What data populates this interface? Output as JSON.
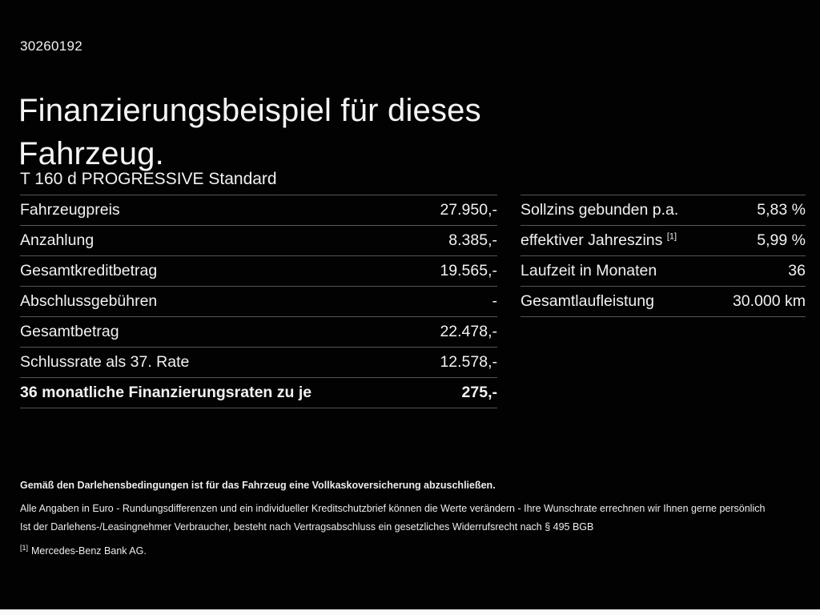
{
  "page": {
    "id_number": "30260192",
    "title_line1": "Finanzierungsbeispiel für dieses",
    "title_line2": "Fahrzeug.",
    "subtitle": "T 160 d PROGRESSIVE Standard"
  },
  "left_table": {
    "rows": [
      {
        "label": "Fahrzeugpreis",
        "value": "27.950,-"
      },
      {
        "label": "Anzahlung",
        "value": "8.385,-"
      },
      {
        "label": "Gesamtkreditbetrag",
        "value": "19.565,-"
      },
      {
        "label": "Abschlussgebühren",
        "value": "-"
      },
      {
        "label": "Gesamtbetrag",
        "value": "22.478,-"
      },
      {
        "label": "Schlussrate als 37. Rate",
        "value": "12.578,-"
      },
      {
        "label": "36 monatliche Finanzierungsraten zu je",
        "value": "275,-"
      }
    ]
  },
  "right_table": {
    "rows": [
      {
        "label": "Sollzins gebunden p.a.",
        "sup": "",
        "value": "5,83 %"
      },
      {
        "label": "effektiver Jahreszins",
        "sup": "[1]",
        "value": "5,99 %"
      },
      {
        "label": "Laufzeit in Monaten",
        "sup": "",
        "value": "36"
      },
      {
        "label": "Gesamtlaufleistung",
        "sup": "",
        "value": "30.000 km"
      }
    ]
  },
  "footnotes": {
    "insurance_note": "Gemäß den Darlehensbedingungen ist für das Fahrzeug eine Vollkaskoversicherung abzuschließen.",
    "euro_note": "Alle Angaben in Euro - Rundungsdifferenzen und ein individueller Kreditschutzbrief können die Werte verändern - Ihre Wunschrate errechnen wir Ihnen gerne persönlich",
    "consumer_note": "Ist der Darlehens-/Leasingnehmer Verbraucher, besteht nach Vertragsabschluss ein gesetzliches Widerrufsrecht nach § 495 BGB",
    "bank_ref_sup": "[1]",
    "bank_note": "Mercedes-Benz Bank AG."
  },
  "colors": {
    "background": "#020202",
    "text": "#f2f2f2",
    "divider": "#565656",
    "bottom_strip": "#fafafa"
  }
}
